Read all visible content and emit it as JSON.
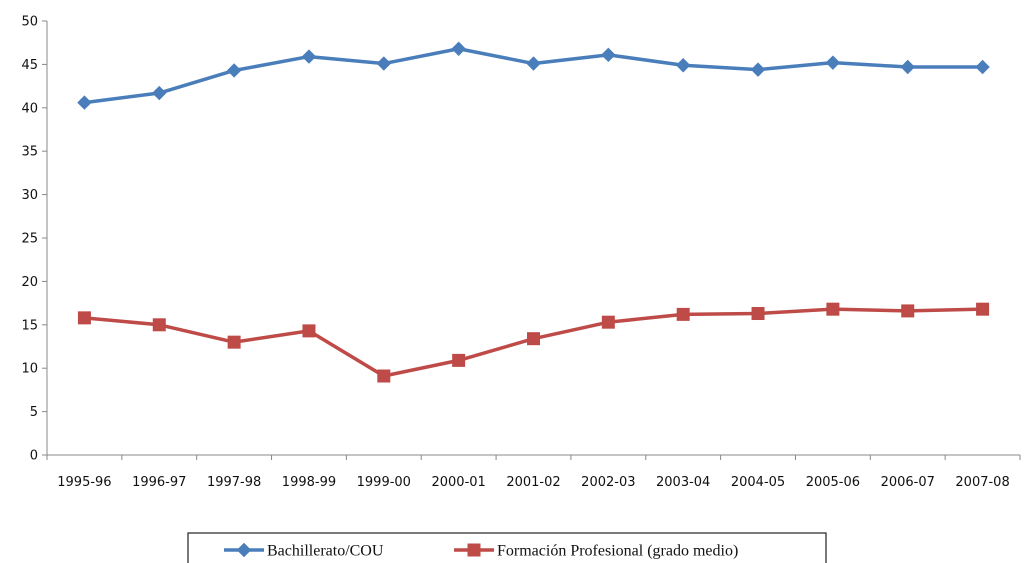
{
  "chart_data": {
    "type": "line",
    "categories": [
      "1995-96",
      "1996-97",
      "1997-98",
      "1998-99",
      "1999-00",
      "2000-01",
      "2001-02",
      "2002-03",
      "2003-04",
      "2004-05",
      "2005-06",
      "2006-07",
      "2007-08"
    ],
    "series": [
      {
        "name": "Bachillerato/COU",
        "color": "#4a7ebb",
        "marker": "diamond",
        "values": [
          40.6,
          41.7,
          44.3,
          45.9,
          45.1,
          46.8,
          45.1,
          46.1,
          44.9,
          44.4,
          45.2,
          44.7,
          44.7
        ]
      },
      {
        "name": "Formación Profesional (grado medio)",
        "color": "#be4b48",
        "marker": "square",
        "values": [
          15.8,
          15.0,
          13.0,
          14.3,
          9.1,
          10.9,
          13.4,
          15.3,
          16.2,
          16.3,
          16.8,
          16.6,
          16.8
        ]
      }
    ],
    "title": "",
    "xlabel": "",
    "ylabel": "",
    "ylim": [
      0,
      50
    ],
    "yticks": [
      "0",
      "5",
      "10",
      "15",
      "20",
      "25",
      "30",
      "35",
      "40",
      "45",
      "50"
    ],
    "grid": false,
    "legend_position": "bottom"
  }
}
